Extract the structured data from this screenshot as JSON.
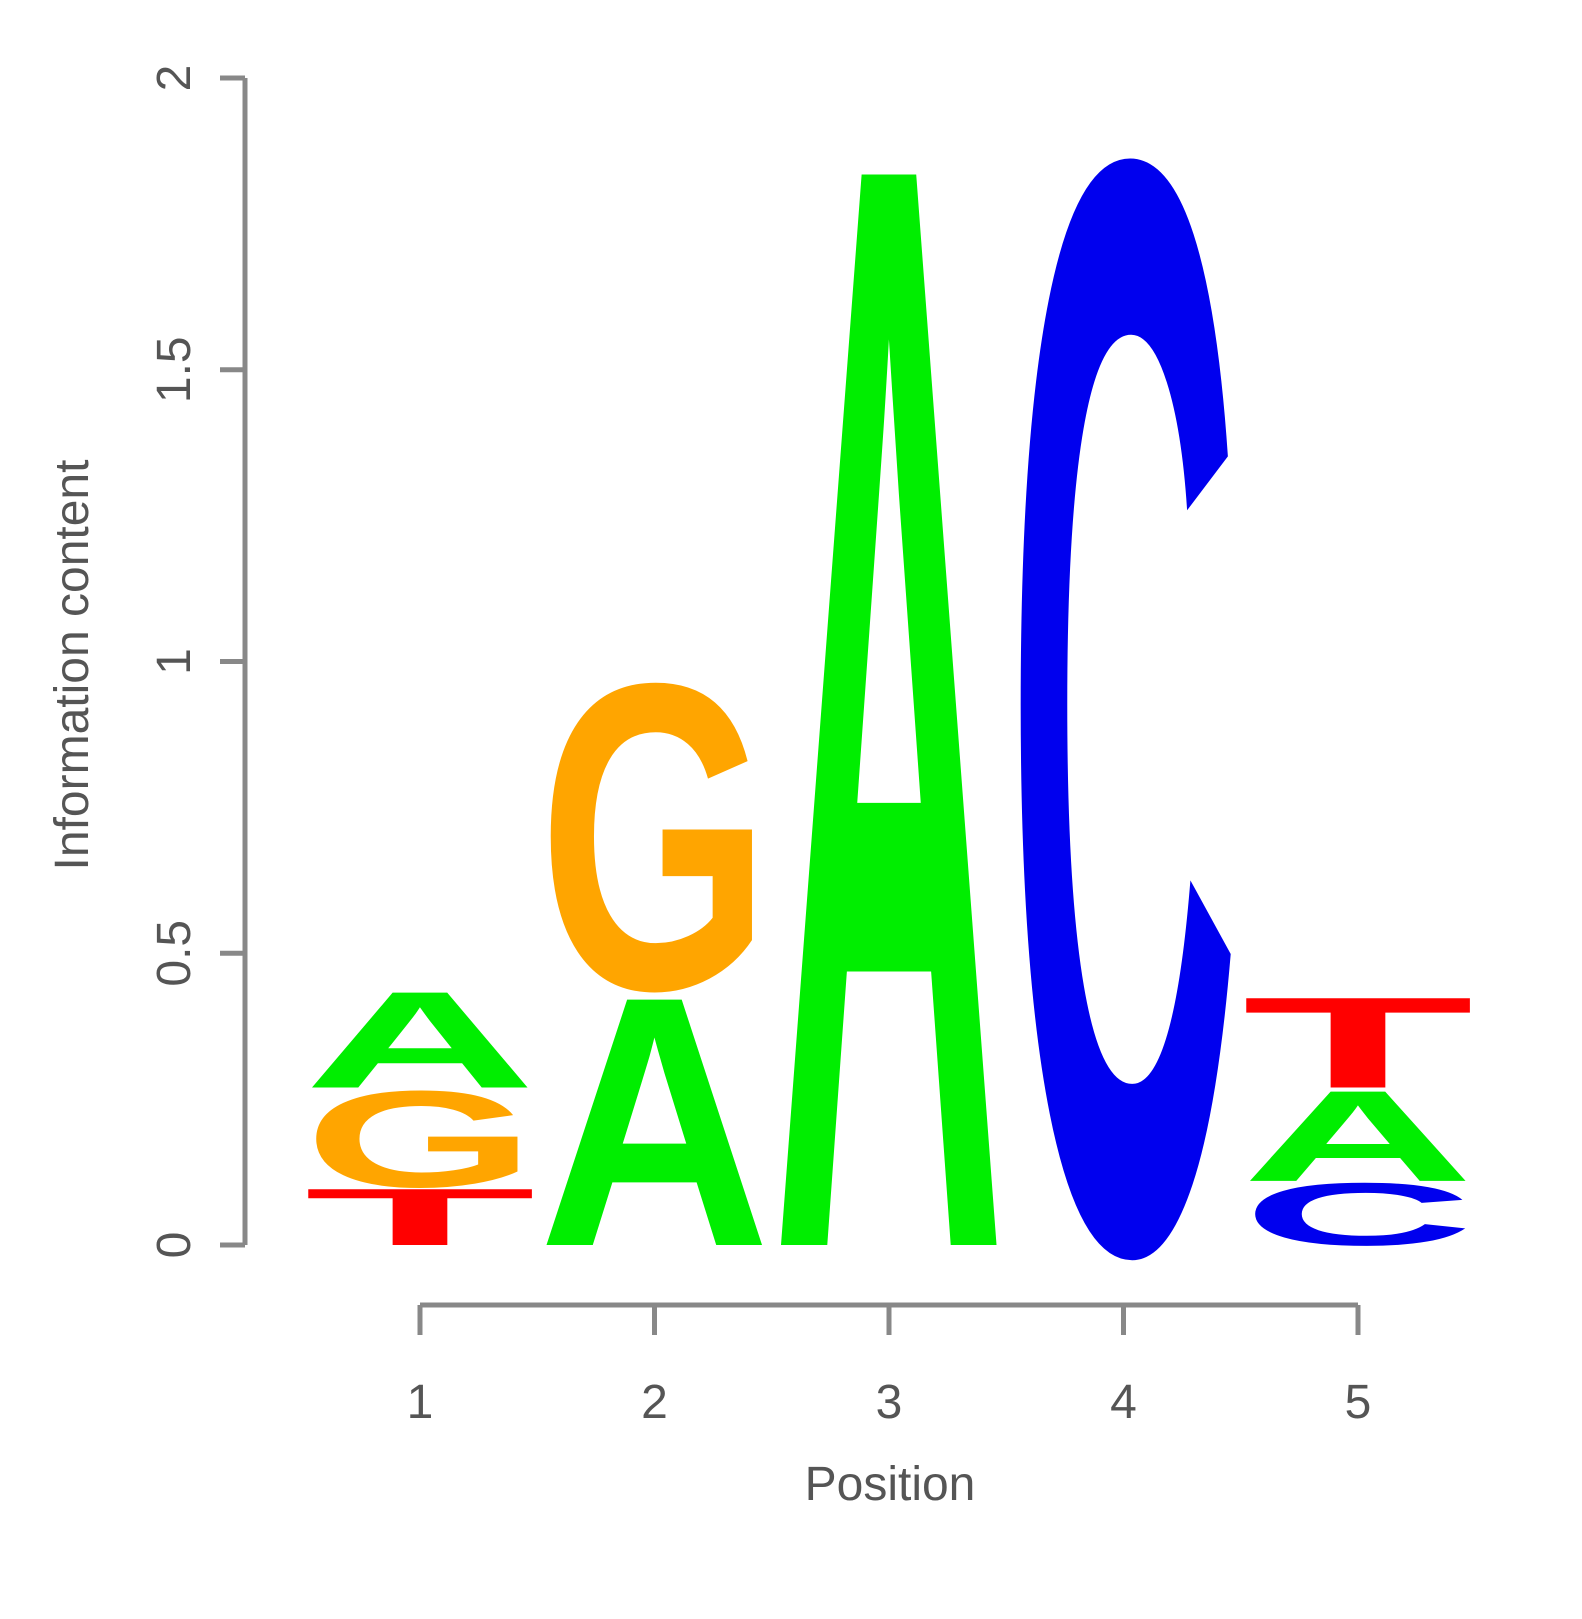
{
  "chart_data": {
    "type": "logo",
    "x_label": "Position",
    "y_label": "Information content",
    "categories": [
      "1",
      "2",
      "3",
      "4",
      "5"
    ],
    "stacks": [
      [
        {
          "letter": "T",
          "value": 0.1
        },
        {
          "letter": "G",
          "value": 0.17
        },
        {
          "letter": "A",
          "value": 0.17
        }
      ],
      [
        {
          "letter": "A",
          "value": 0.44
        },
        {
          "letter": "G",
          "value": 0.54
        }
      ],
      [
        {
          "letter": "A",
          "value": 1.92
        }
      ],
      [
        {
          "letter": "C",
          "value": 1.92
        }
      ],
      [
        {
          "letter": "C",
          "value": 0.11
        },
        {
          "letter": "A",
          "value": 0.16
        },
        {
          "letter": "T",
          "value": 0.16
        }
      ]
    ],
    "colors": {
      "A": "#00ee00",
      "C": "#0000ee",
      "G": "#ffa500",
      "T": "#ff0000"
    },
    "ylim": [
      0,
      2
    ],
    "yticks": [
      0,
      0.5,
      1,
      1.5,
      2
    ]
  }
}
